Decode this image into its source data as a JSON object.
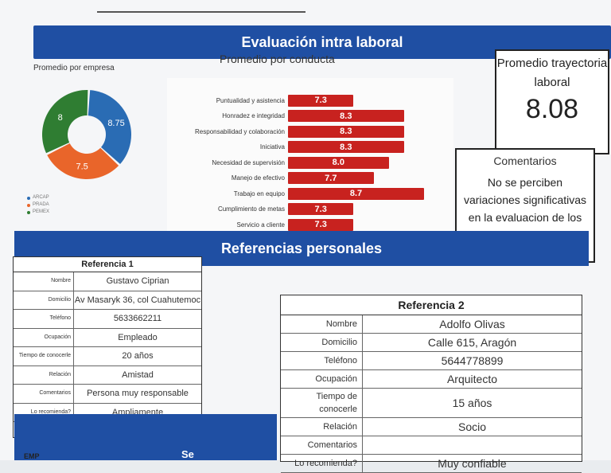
{
  "header": {
    "title": "Evaluación intra laboral"
  },
  "company_chart": {
    "label": "Promedio por empresa",
    "legend": [
      "ARCAP",
      "PRADA",
      "PEMEX"
    ]
  },
  "conduct_chart": {
    "label": "Promedio por conducta"
  },
  "chart_data": [
    {
      "type": "pie",
      "title": "Promedio por empresa",
      "categories": [
        "ARCAP",
        "PRADA",
        "PEMEX"
      ],
      "values": [
        8.75,
        7.5,
        8
      ],
      "colors": [
        "#2a6cb4",
        "#e9652a",
        "#2f7d32"
      ]
    },
    {
      "type": "bar",
      "title": "Promedio por conducta",
      "categories": [
        "Puntualidad y asistencia",
        "Honradez e integridad",
        "Responsabilidad y colaboración",
        "Iniciativa",
        "Necesidad de supervisión",
        "Manejo de efectivo",
        "Trabajo en equipo",
        "Cumplimiento de metas",
        "Servicio a cliente"
      ],
      "values": [
        7.3,
        8.3,
        8.3,
        8.3,
        8.0,
        7.7,
        8.7,
        7.3,
        7.3
      ],
      "value_labels": [
        "7.3",
        "8.3",
        "8.3",
        "8.3",
        "8.0",
        "7.7",
        "8.7",
        "7.3",
        "7.3"
      ],
      "xlim": [
        6,
        9
      ],
      "color": "#c8221f"
    }
  ],
  "trayectoria": {
    "title": "Promedio trayectoria laboral",
    "value": "8.08"
  },
  "comentarios": {
    "title": "Comentarios",
    "text": "No se perciben variaciones significativas en la evaluacion de los"
  },
  "references": {
    "title": "Referencias personales",
    "ref1": {
      "title": "Referencia 1",
      "rows": [
        {
          "key": "Nombre",
          "value": "Gustavo Ciprian"
        },
        {
          "key": "Domicilio",
          "value": "Av Masaryk 36, col Cuahutemoc"
        },
        {
          "key": "Teléfono",
          "value": "5633662211"
        },
        {
          "key": "Ocupación",
          "value": "Empleado"
        },
        {
          "key": "Tiempo de conocerle",
          "value": "20 años"
        },
        {
          "key": "Relación",
          "value": "Amistad"
        },
        {
          "key": "Comentarios",
          "value": "Persona muy responsable"
        },
        {
          "key": "Lo recomienda?",
          "value": "Ampliamente"
        }
      ]
    },
    "ref2": {
      "title": "Referencia 2",
      "rows": [
        {
          "key": "Nombre",
          "value": "Adolfo Olivas"
        },
        {
          "key": "Domicilio",
          "value": "Calle 615, Aragón"
        },
        {
          "key": "Teléfono",
          "value": "5644778899"
        },
        {
          "key": "Ocupación",
          "value": "Arquitecto"
        },
        {
          "key": "Tiempo de conocerle",
          "value": "15 años"
        },
        {
          "key": "Relación",
          "value": "Socio"
        },
        {
          "key": "Comentarios",
          "value": ""
        },
        {
          "key": "Lo recomienda?",
          "value": "Muy confiable"
        }
      ]
    }
  },
  "footer": {
    "band_label": "Se",
    "left_label": "EMP"
  }
}
